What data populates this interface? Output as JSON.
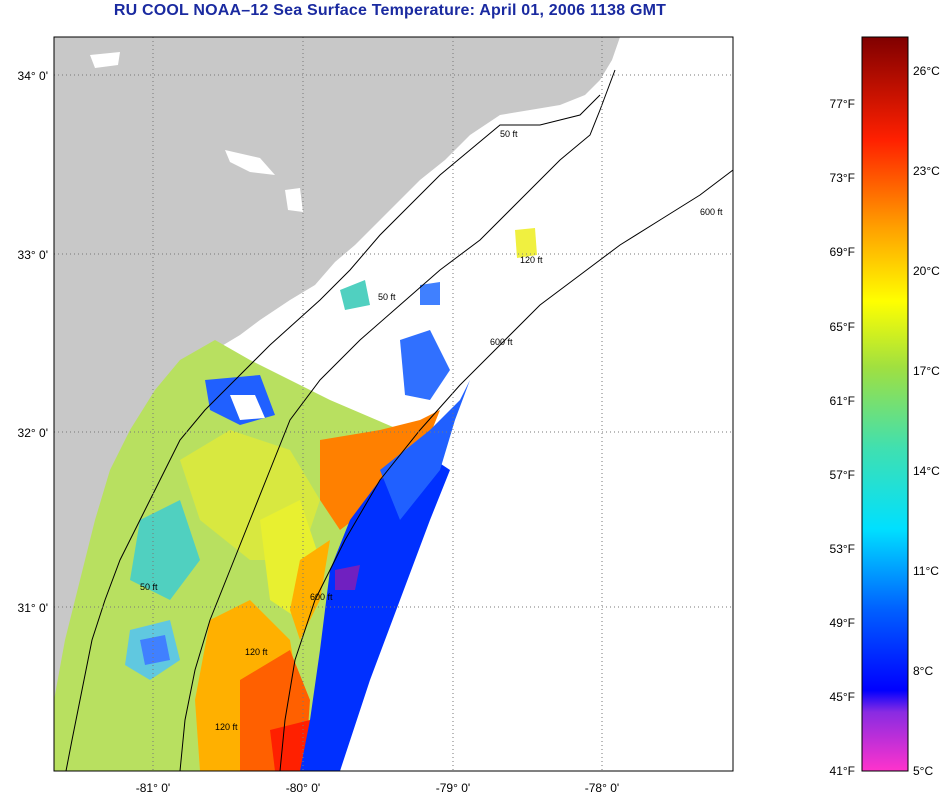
{
  "title": "RU COOL  NOAA–12  Sea Surface Temperature:  April 01, 2006 1138 GMT",
  "map": {
    "lat_labels": [
      "34° 0'",
      "33° 0'",
      "32° 0'",
      "31° 0'"
    ],
    "lon_labels": [
      "-81° 0'",
      "-80° 0'",
      "-79° 0'",
      "-78° 0'"
    ],
    "contour_labels": [
      "50 ft",
      "120 ft",
      "600 ft"
    ],
    "land_color": "#c8c8c8",
    "grid": "dotted"
  },
  "colorbar": {
    "f_labels": [
      "77°F",
      "73°F",
      "69°F",
      "65°F",
      "61°F",
      "57°F",
      "53°F",
      "49°F",
      "45°F",
      "41°F"
    ],
    "c_labels": [
      "26°C",
      "23°C",
      "20°C",
      "17°C",
      "14°C",
      "11°C",
      "8°C",
      "5°C"
    ]
  }
}
